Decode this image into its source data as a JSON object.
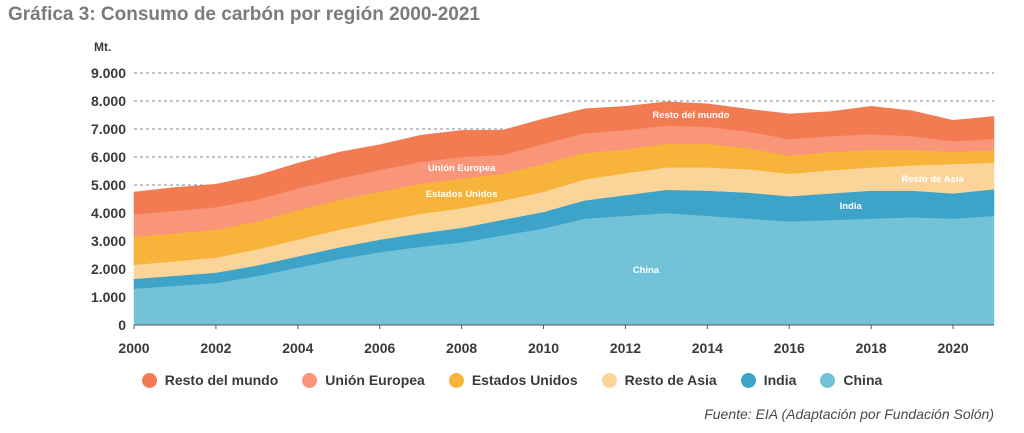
{
  "title": "Gráfica 3: Consumo de carbón por región 2000-2021",
  "source": "Fuente: EIA (Adaptación por Fundación Solón)",
  "chart_data": {
    "type": "area",
    "stacked": true,
    "unit": "Mt.",
    "x": [
      2000,
      2001,
      2002,
      2003,
      2004,
      2005,
      2006,
      2007,
      2008,
      2009,
      2010,
      2011,
      2012,
      2013,
      2014,
      2015,
      2016,
      2017,
      2018,
      2019,
      2020,
      2021
    ],
    "x_ticks": [
      2000,
      2002,
      2004,
      2006,
      2008,
      2010,
      2012,
      2014,
      2016,
      2018,
      2020
    ],
    "x_tick_labels": [
      "2000",
      "2002",
      "2004",
      "2006",
      "2008",
      "2010",
      "2012",
      "2014",
      "2016",
      "2018",
      "2020"
    ],
    "ylim": [
      0,
      9000
    ],
    "y_ticks": [
      0,
      1000,
      2000,
      3000,
      4000,
      5000,
      6000,
      7000,
      8000,
      9000
    ],
    "y_tick_labels": [
      "0",
      "1.000",
      "2.000",
      "3.000",
      "4.000",
      "5.000",
      "6.000",
      "7.000",
      "8.000",
      "9.000"
    ],
    "grid": "horizontal-dashed",
    "legend_position": "bottom",
    "series": [
      {
        "name": "China",
        "color": "#72c3d8",
        "values": [
          1300,
          1400,
          1500,
          1750,
          2050,
          2350,
          2600,
          2800,
          2950,
          3200,
          3450,
          3800,
          3900,
          4000,
          3900,
          3800,
          3700,
          3750,
          3800,
          3850,
          3800,
          3900
        ]
      },
      {
        "name": "India",
        "color": "#3da3c8",
        "values": [
          350,
          360,
          370,
          380,
          400,
          420,
          450,
          480,
          520,
          560,
          590,
          650,
          740,
          830,
          900,
          930,
          900,
          950,
          1000,
          950,
          900,
          950
        ]
      },
      {
        "name": "Resto de Asia",
        "color": "#fbd49a",
        "values": [
          500,
          520,
          540,
          570,
          600,
          630,
          650,
          690,
          700,
          680,
          720,
          750,
          780,
          800,
          830,
          830,
          800,
          830,
          830,
          900,
          1050,
          950
        ]
      },
      {
        "name": "Estados Unidos",
        "color": "#f8b43a",
        "values": [
          1000,
          1000,
          1000,
          1000,
          1050,
          1070,
          1060,
          1080,
          1070,
          960,
          1000,
          950,
          850,
          850,
          850,
          750,
          650,
          650,
          630,
          560,
          440,
          450
        ]
      },
      {
        "name": "Unión Europea",
        "color": "#f99578",
        "values": [
          800,
          800,
          800,
          780,
          780,
          760,
          780,
          780,
          760,
          680,
          710,
          700,
          690,
          640,
          600,
          600,
          590,
          570,
          550,
          490,
          370,
          400
        ]
      },
      {
        "name": "Resto del mundo",
        "color": "#f37b52",
        "values": [
          800,
          830,
          820,
          860,
          900,
          940,
          900,
          950,
          950,
          880,
          890,
          870,
          850,
          850,
          820,
          800,
          900,
          870,
          1000,
          900,
          750,
          800
        ]
      }
    ],
    "annotations": [
      {
        "text": "Resto del mundo",
        "series": "Resto del mundo",
        "x": 2013.6
      },
      {
        "text": "Unión Europea",
        "series": "Unión Europea",
        "x": 2008
      },
      {
        "text": "Estados Unidos",
        "series": "Estados Unidos",
        "x": 2008
      },
      {
        "text": "Resto de Asia",
        "series": "Resto de Asia",
        "x": 2019.5
      },
      {
        "text": "India",
        "series": "India",
        "x": 2017.5
      },
      {
        "text": "China",
        "series": "China",
        "x": 2012.5
      }
    ]
  }
}
